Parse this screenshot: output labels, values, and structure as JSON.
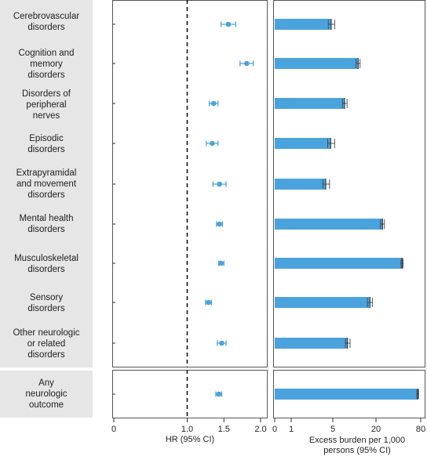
{
  "chart_data": [
    {
      "type": "scatter",
      "subtype": "forest-plot",
      "xlabel": "HR (95% CI)",
      "xlim": [
        0,
        2.0
      ],
      "xticks": [
        "0",
        "1.0",
        "1.5",
        "2.0"
      ],
      "reference_line": 1.0,
      "color": "#4aa3dc",
      "categories": [
        "Cerebrovascular\ndisorders",
        "Cognition and\nmemory\ndisorders",
        "Disorders of\nperipheral\nnerves",
        "Episodic\ndisorders",
        "Extrapyramidal\nand movement\ndisorders",
        "Mental health\ndisorders",
        "Musculoskeletal\ndisorders",
        "Sensory\ndisorders",
        "Other neurologic\nor related\ndisorders",
        "Any\nneurologic\noutcome"
      ],
      "estimates": [
        1.56,
        1.81,
        1.36,
        1.34,
        1.44,
        1.44,
        1.46,
        1.29,
        1.47,
        1.43
      ],
      "ci_lower": [
        1.46,
        1.72,
        1.3,
        1.26,
        1.35,
        1.4,
        1.43,
        1.25,
        1.41,
        1.39
      ],
      "ci_upper": [
        1.66,
        1.9,
        1.42,
        1.42,
        1.53,
        1.48,
        1.5,
        1.33,
        1.53,
        1.47
      ]
    },
    {
      "type": "bar",
      "orientation": "horizontal",
      "xlabel": "Excess burden per 1,000\npersons (95% CI)",
      "xscale": "log",
      "xticks": [
        "0",
        "1",
        "5",
        "20",
        "80"
      ],
      "color": "#4aa3dc",
      "categories": [
        "Cerebrovascular\ndisorders",
        "Cognition and\nmemory\ndisorders",
        "Disorders of\nperipheral\nnerves",
        "Episodic\ndisorders",
        "Extrapyramidal\nand movement\ndisorders",
        "Mental health\ndisorders",
        "Musculoskeletal\ndisorders",
        "Sensory\ndisorders",
        "Other neurologic\nor related\ndisorders",
        "Any\nneurologic\noutcome"
      ],
      "values": [
        4.7,
        11.3,
        7.3,
        4.6,
        3.8,
        24.5,
        45.0,
        16.5,
        8.0,
        73.0
      ],
      "ci_lower": [
        4.2,
        10.5,
        6.8,
        4.1,
        3.4,
        23.0,
        43.5,
        15.2,
        7.5,
        71.0
      ],
      "ci_upper": [
        5.3,
        12.0,
        7.9,
        5.3,
        4.4,
        26.0,
        46.5,
        17.8,
        8.7,
        75.0
      ]
    }
  ]
}
